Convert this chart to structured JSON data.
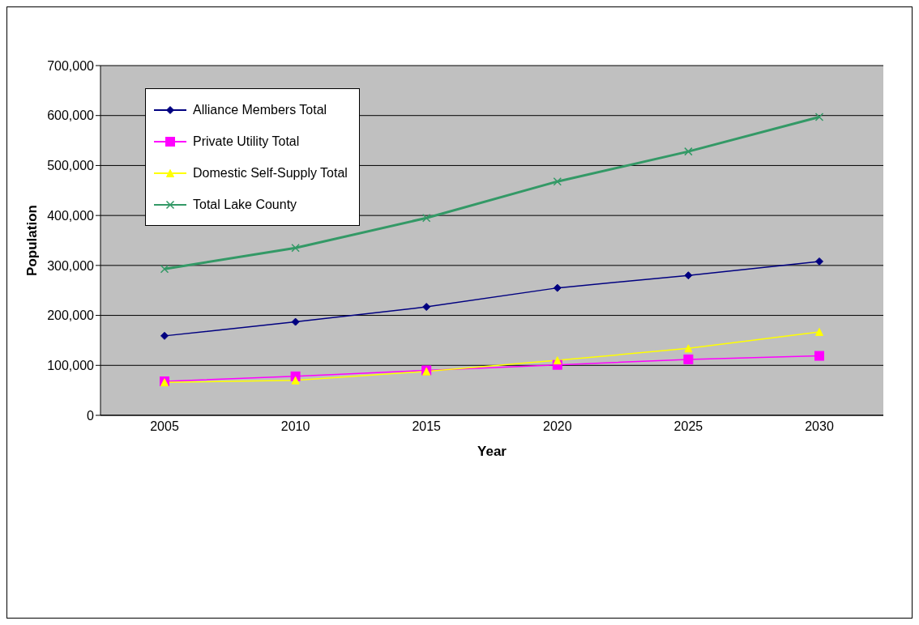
{
  "chart_data": {
    "type": "line",
    "xlabel": "Year",
    "ylabel": "Population",
    "categories": [
      "2005",
      "2010",
      "2015",
      "2020",
      "2025",
      "2030"
    ],
    "series": [
      {
        "name": "Alliance Members Total",
        "color": "#000080",
        "marker": "diamond",
        "values": [
          159000,
          187000,
          217000,
          255000,
          280000,
          308000
        ]
      },
      {
        "name": "Private Utility Total",
        "color": "#ff00ff",
        "marker": "square",
        "values": [
          68000,
          78000,
          90000,
          101000,
          112000,
          119000
        ]
      },
      {
        "name": "Domestic Self-Supply Total",
        "color": "#ffff00",
        "marker": "triangle",
        "values": [
          66000,
          70000,
          88000,
          110000,
          134000,
          167000
        ]
      },
      {
        "name": "Total Lake County",
        "color": "#339966",
        "marker": "cross",
        "values": [
          293000,
          335000,
          395000,
          468000,
          528000,
          597000
        ]
      }
    ],
    "ylim": [
      0,
      700000
    ],
    "yticks": [
      0,
      {
        "value": 100000,
        "label": "100,000"
      },
      {
        "value": 200000,
        "label": "200,000"
      },
      {
        "value": 300000,
        "label": "300,000"
      },
      {
        "value": 400000,
        "label": "400,000"
      },
      {
        "value": 500000,
        "label": "500,000"
      },
      {
        "value": 600000,
        "label": "600,000"
      },
      {
        "value": 700000,
        "label": "700,000"
      }
    ],
    "grid": "y",
    "legend": "top left",
    "line_style": "solid"
  }
}
